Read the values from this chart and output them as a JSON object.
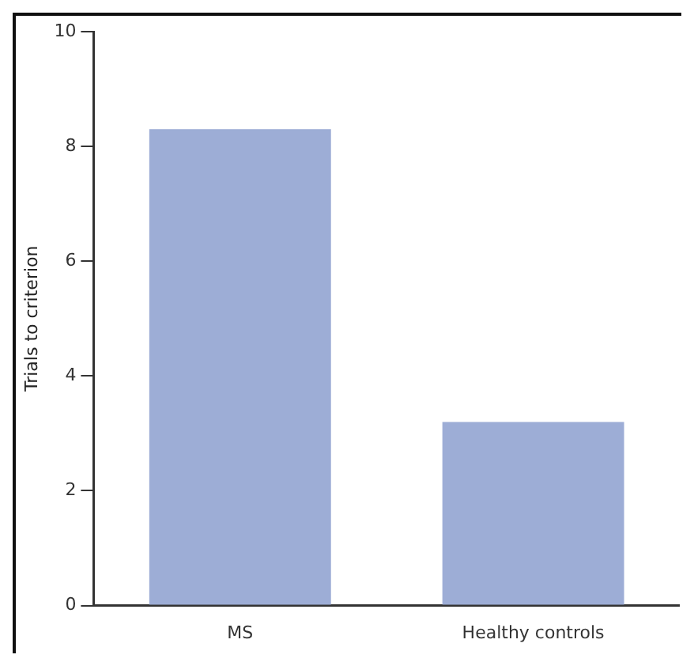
{
  "chart_data": {
    "type": "bar",
    "ylabel": "Trials to criterion",
    "categories": [
      "MS",
      "Healthy controls"
    ],
    "values": [
      8.3,
      3.2
    ],
    "color": "#9dadd6",
    "ylim": [
      0,
      10
    ],
    "yticks": [
      0,
      2,
      4,
      6,
      8,
      10
    ],
    "grid": false,
    "legend": false
  }
}
